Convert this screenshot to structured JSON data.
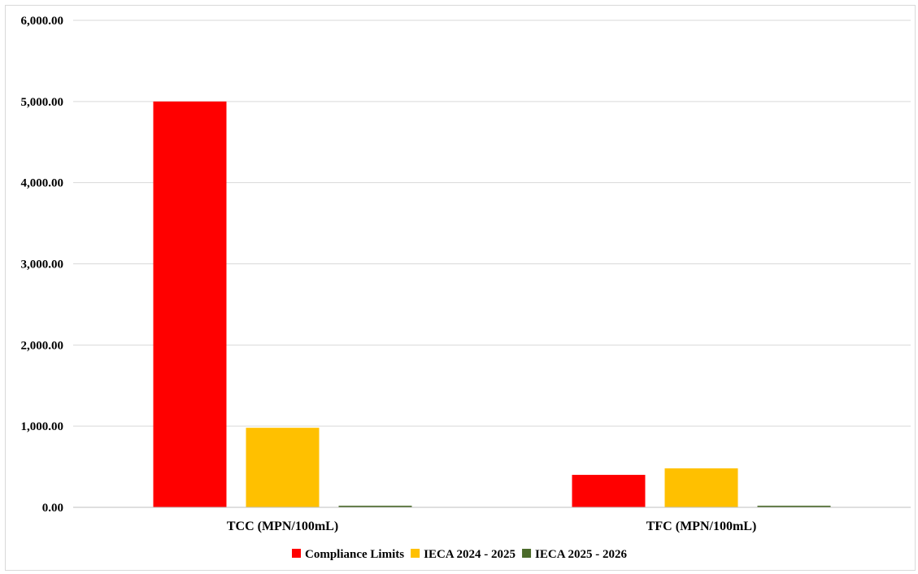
{
  "chart_data": {
    "type": "bar",
    "title": "",
    "xlabel": "",
    "ylabel": "",
    "categories": [
      "TCC (MPN/100mL)",
      "TFC (MPN/100mL)"
    ],
    "series": [
      {
        "name": "Compliance Limits",
        "color": "#ff0000",
        "values": [
          5000,
          400
        ]
      },
      {
        "name": "IECA 2024 - 2025",
        "color": "#ffc000",
        "values": [
          980,
          480
        ]
      },
      {
        "name": "IECA 2025 - 2026",
        "color": "#4b6b2a",
        "values": [
          8,
          17
        ]
      }
    ],
    "ylim": [
      0,
      6000
    ],
    "yticks": [
      0,
      1000,
      2000,
      3000,
      4000,
      5000,
      6000
    ],
    "ytick_labels": [
      "0.00",
      "1,000.00",
      "2,000.00",
      "3,000.00",
      "4,000.00",
      "5,000.00",
      "6,000.00"
    ],
    "grid": true,
    "legend_position": "bottom"
  }
}
